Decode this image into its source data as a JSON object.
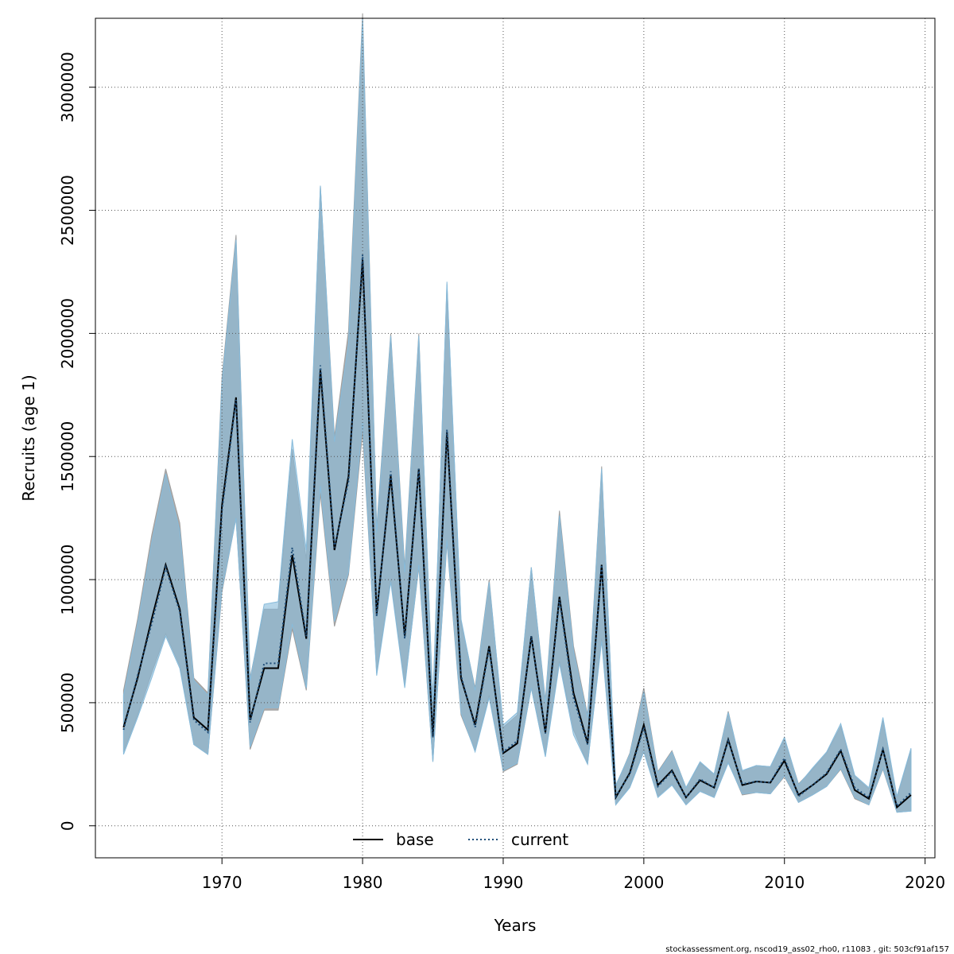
{
  "chart_data": {
    "type": "area",
    "xlabel": "Years",
    "ylabel": "Recruits (age 1)",
    "xlim": [
      1961,
      2020.7
    ],
    "ylim": [
      -130000,
      3280000
    ],
    "x_ticks": [
      1970,
      1980,
      1990,
      2000,
      2010,
      2020
    ],
    "y_ticks": [
      0,
      500000,
      1000000,
      1500000,
      2000000,
      2500000,
      3000000
    ],
    "grid": true,
    "legend_position": "bottom-center",
    "years": [
      1963,
      1964,
      1965,
      1966,
      1967,
      1968,
      1969,
      1970,
      1971,
      1972,
      1973,
      1974,
      1975,
      1976,
      1977,
      1978,
      1979,
      1980,
      1981,
      1982,
      1983,
      1984,
      1985,
      1986,
      1987,
      1988,
      1989,
      1990,
      1991,
      1992,
      1993,
      1994,
      1995,
      1996,
      1997,
      1998,
      1999,
      2000,
      2001,
      2002,
      2003,
      2004,
      2005,
      2006,
      2007,
      2008,
      2009,
      2010,
      2011,
      2012,
      2013,
      2014,
      2015,
      2016,
      2017,
      2018,
      2019
    ],
    "series": [
      {
        "name": "base",
        "color": "#000000",
        "linestyle": "solid",
        "band_color": "#9e9e9e",
        "values": [
          400000,
          600000,
          840000,
          1060000,
          880000,
          440000,
          390000,
          1300000,
          1740000,
          430000,
          640000,
          640000,
          1100000,
          760000,
          1850000,
          1120000,
          1420000,
          2300000,
          860000,
          1420000,
          770000,
          1450000,
          360000,
          1600000,
          600000,
          410000,
          730000,
          295000,
          335000,
          770000,
          380000,
          930000,
          540000,
          335000,
          1060000,
          115000,
          215000,
          410000,
          165000,
          225000,
          115000,
          185000,
          155000,
          350000,
          165000,
          180000,
          175000,
          265000,
          125000,
          165000,
          210000,
          305000,
          145000,
          110000,
          310000,
          75000,
          125000
        ],
        "lower": [
          300000,
          450000,
          620000,
          780000,
          650000,
          330000,
          290000,
          950000,
          1250000,
          310000,
          470000,
          470000,
          800000,
          550000,
          1350000,
          810000,
          1020000,
          1600000,
          620000,
          1000000,
          570000,
          1050000,
          260000,
          1150000,
          450000,
          305000,
          530000,
          220000,
          250000,
          560000,
          285000,
          670000,
          390000,
          250000,
          760000,
          85000,
          160000,
          310000,
          120000,
          170000,
          85000,
          140000,
          115000,
          260000,
          125000,
          135000,
          130000,
          200000,
          95000,
          125000,
          160000,
          230000,
          110000,
          85000,
          230000,
          55000,
          60000
        ],
        "upper": [
          550000,
          840000,
          1180000,
          1450000,
          1230000,
          600000,
          540000,
          1820000,
          2400000,
          600000,
          880000,
          880000,
          1530000,
          1080000,
          2600000,
          1580000,
          2010000,
          3300000,
          1210000,
          2000000,
          1050000,
          2000000,
          500000,
          2200000,
          830000,
          560000,
          1000000,
          400000,
          450000,
          1050000,
          510000,
          1280000,
          730000,
          450000,
          1460000,
          160000,
          295000,
          560000,
          220000,
          305000,
          155000,
          255000,
          210000,
          465000,
          220000,
          245000,
          240000,
          355000,
          170000,
          230000,
          295000,
          405000,
          200000,
          150000,
          435000,
          115000,
          310000
        ]
      },
      {
        "name": "current",
        "color": "#1f4e79",
        "linestyle": "dotted",
        "band_color": "#87bbdb",
        "values": [
          390000,
          610000,
          820000,
          1050000,
          870000,
          430000,
          380000,
          1280000,
          1730000,
          420000,
          660000,
          660000,
          1130000,
          770000,
          1870000,
          1130000,
          1400000,
          2320000,
          850000,
          1440000,
          760000,
          1450000,
          360000,
          1610000,
          610000,
          400000,
          720000,
          300000,
          345000,
          770000,
          375000,
          920000,
          520000,
          330000,
          1060000,
          120000,
          210000,
          400000,
          160000,
          220000,
          115000,
          190000,
          155000,
          345000,
          170000,
          180000,
          175000,
          275000,
          120000,
          165000,
          215000,
          310000,
          155000,
          115000,
          310000,
          80000,
          135000
        ],
        "lower": [
          290000,
          440000,
          600000,
          770000,
          640000,
          330000,
          290000,
          960000,
          1250000,
          320000,
          480000,
          480000,
          820000,
          560000,
          1380000,
          830000,
          1030000,
          1640000,
          610000,
          990000,
          560000,
          1060000,
          260000,
          1160000,
          460000,
          300000,
          520000,
          225000,
          255000,
          560000,
          280000,
          660000,
          370000,
          250000,
          750000,
          85000,
          155000,
          300000,
          115000,
          165000,
          85000,
          140000,
          115000,
          255000,
          130000,
          135000,
          130000,
          205000,
          95000,
          125000,
          160000,
          235000,
          115000,
          85000,
          235000,
          55000,
          60000
        ],
        "upper": [
          530000,
          820000,
          1150000,
          1430000,
          1200000,
          590000,
          530000,
          1800000,
          2380000,
          590000,
          900000,
          910000,
          1570000,
          1120000,
          2600000,
          1560000,
          1960000,
          3280000,
          1190000,
          1990000,
          1030000,
          1990000,
          500000,
          2210000,
          840000,
          550000,
          990000,
          410000,
          460000,
          1050000,
          500000,
          1260000,
          710000,
          440000,
          1450000,
          165000,
          290000,
          545000,
          215000,
          300000,
          155000,
          260000,
          210000,
          460000,
          225000,
          245000,
          240000,
          360000,
          165000,
          235000,
          300000,
          415000,
          205000,
          155000,
          440000,
          120000,
          315000
        ]
      }
    ]
  },
  "footnote": "stockassessment.org, nscod19_ass02_rho0, r11083 , git: 503cf91af157"
}
